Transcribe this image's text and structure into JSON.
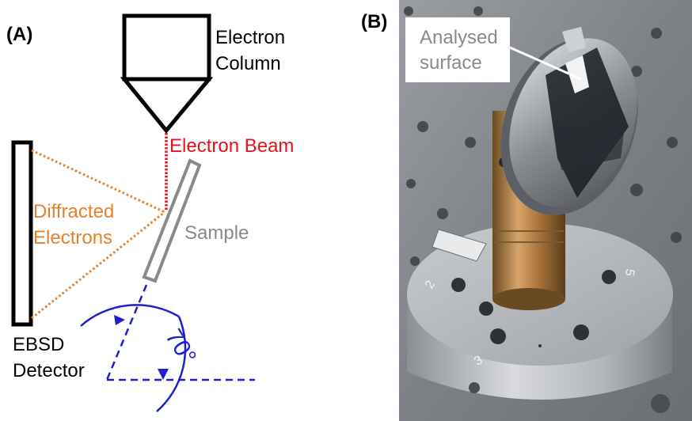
{
  "panel_a": {
    "label": "(A)",
    "electron_column_line1": "Electron",
    "electron_column_line2": "Column",
    "electron_beam": "Electron Beam",
    "diffracted_line1": "Diffracted",
    "diffracted_line2": "Electrons",
    "sample": "Sample",
    "detector_line1": "EBSD",
    "detector_line2": "Detector",
    "angle": "70°",
    "colors": {
      "beam": "#e8101a",
      "diffracted": "#e8802a",
      "sample": "#8a8a8a",
      "angle": "#1f1fd0"
    }
  },
  "panel_b": {
    "label": "(B)",
    "callout_line1": "Analysed",
    "callout_line2": "surface",
    "stage_numbers": [
      "2",
      "5",
      "3"
    ]
  }
}
